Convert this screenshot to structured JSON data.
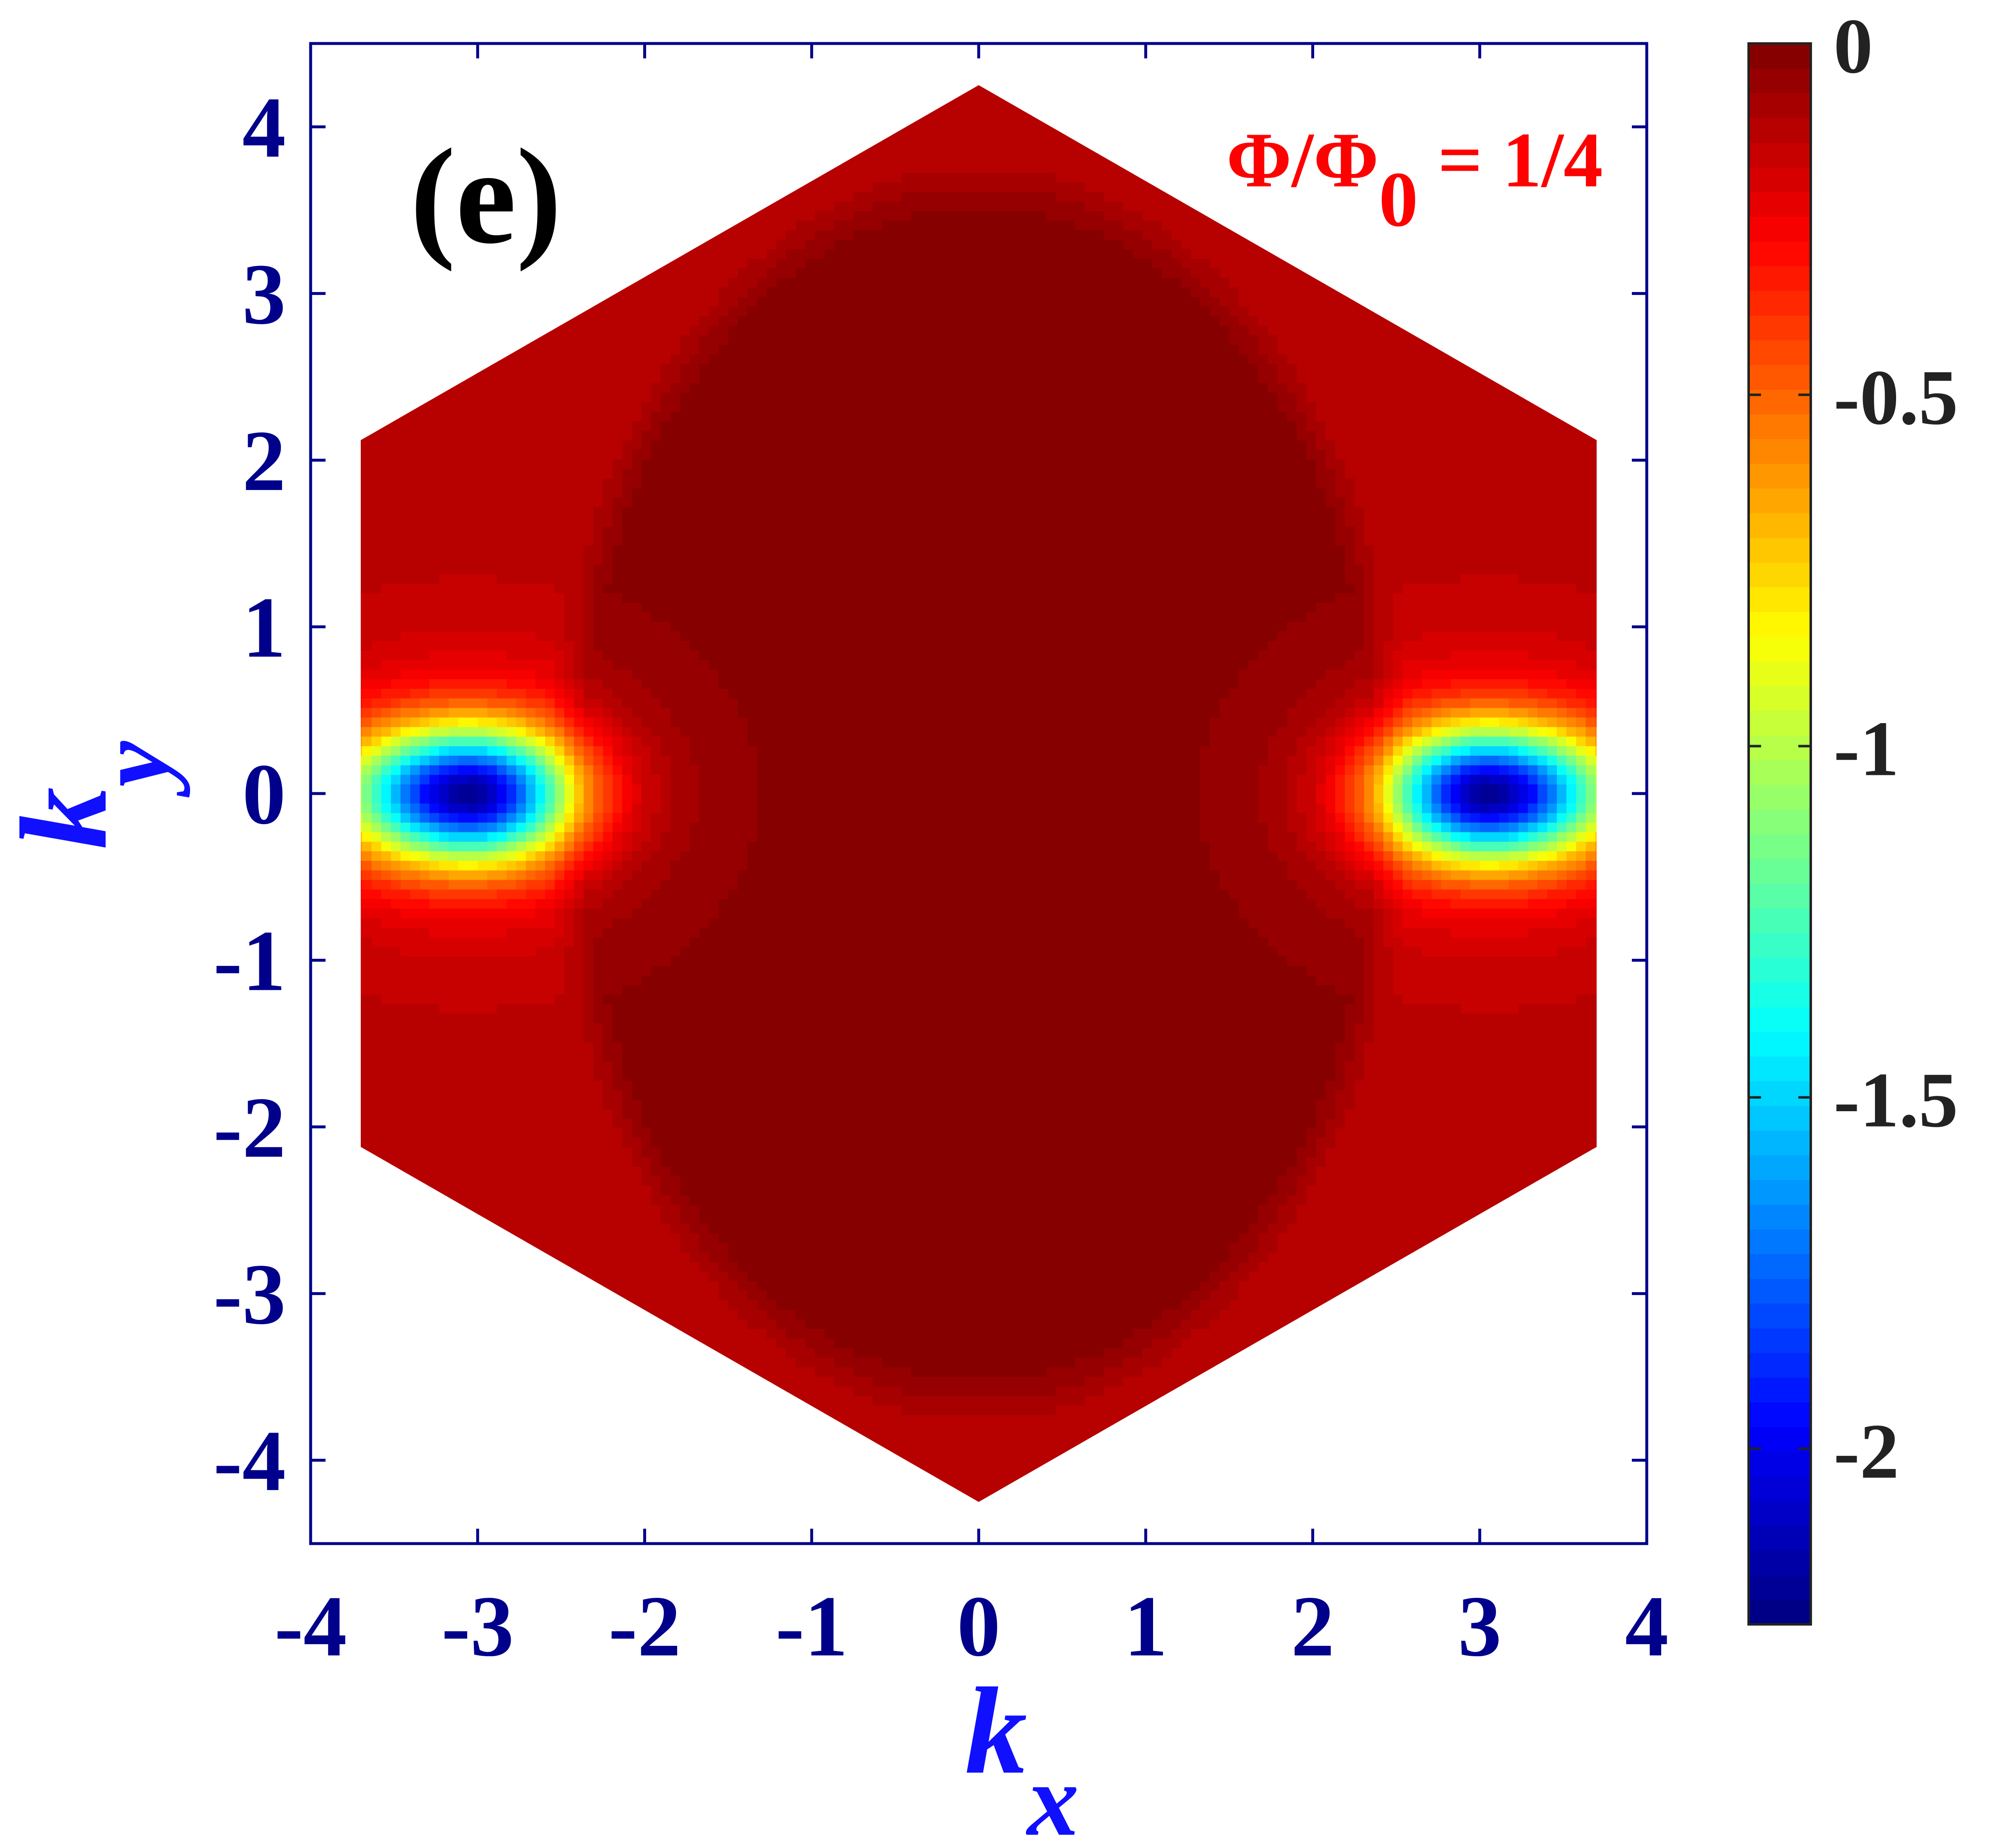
{
  "chart_data": {
    "type": "heatmap",
    "panel_label": "(e)",
    "annotation": {
      "base": "Φ/Φ",
      "subscript": "0",
      "tail": " = 1/4"
    },
    "xlabel": {
      "base": "k",
      "subscript": "x"
    },
    "ylabel": {
      "base": "k",
      "subscript": "y"
    },
    "xlim": [
      -4,
      4
    ],
    "ylim": [
      -4.5,
      4.5
    ],
    "xticks": [
      -4,
      -3,
      -2,
      -1,
      0,
      1,
      2,
      3,
      4
    ],
    "yticks": [
      -4,
      -3,
      -2,
      -1,
      0,
      1,
      2,
      3,
      4
    ],
    "xtick_labels": [
      "-4",
      "-3",
      "-2",
      "-1",
      "0",
      "1",
      "2",
      "3",
      "4"
    ],
    "ytick_labels": [
      "-4",
      "-3",
      "-2",
      "-1",
      "0",
      "1",
      "2",
      "3",
      "4"
    ],
    "grid": false,
    "colorbar": {
      "range": [
        -2.25,
        0
      ],
      "ticks": [
        0,
        -0.5,
        -1,
        -1.5,
        -2
      ],
      "tick_labels": [
        "0",
        "-0.5",
        "-1",
        "-1.5",
        "-2"
      ],
      "colormap": "jet",
      "levels": 64
    },
    "region": {
      "shape": "hexagonal Brillouin zone",
      "vertices": [
        [
          0,
          4.25
        ],
        [
          3.7,
          2.12
        ],
        [
          3.7,
          -2.12
        ],
        [
          0,
          -4.25
        ],
        [
          -3.7,
          -2.12
        ],
        [
          -3.7,
          2.12
        ]
      ]
    },
    "field": {
      "background_value": -0.12,
      "center_value": -0.02,
      "minima": [
        {
          "kx": -3.05,
          "ky": 0,
          "value": -2.25
        },
        {
          "kx": 3.05,
          "ky": 0,
          "value": -2.25
        }
      ]
    }
  },
  "colors": {
    "axis": "#00008b",
    "annotation": "#ff0000",
    "xlabel": "#1010ff",
    "ylabel": "#1010ff",
    "panel_label": "#000000",
    "colorbar_ticks": "#222222"
  }
}
